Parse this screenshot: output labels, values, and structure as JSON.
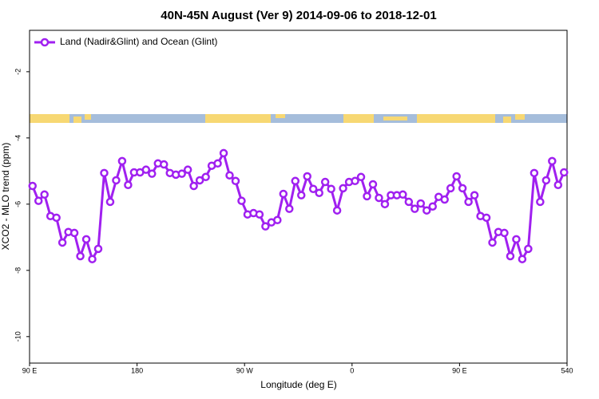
{
  "chart_data": {
    "type": "line",
    "title": "40N-45N August (Ver 9)   2014-09-06 to 2018-12-01",
    "x_label": "Longitude (deg E)",
    "y_label": "XCO2 - MLO trend (ppm)",
    "legend": "top-left",
    "x": [
      92.5,
      97.5,
      102.5,
      107.5,
      112.5,
      117.5,
      122.5,
      127.5,
      132.5,
      137.5,
      142.5,
      147.5,
      152.5,
      157.5,
      162.5,
      167.5,
      172.5,
      177.5,
      182.5,
      187.5,
      192.5,
      197.5,
      202.5,
      207.5,
      212.5,
      217.5,
      222.5,
      227.5,
      232.5,
      237.5,
      242.5,
      247.5,
      252.5,
      257.5,
      262.5,
      267.5,
      272.5,
      277.5,
      282.5,
      287.5,
      292.5,
      297.5,
      302.5,
      307.5,
      312.5,
      317.5,
      322.5,
      327.5,
      332.5,
      337.5,
      342.5,
      347.5,
      352.5,
      357.5,
      362.5,
      367.5,
      372.5,
      377.5,
      382.5,
      387.5,
      392.5,
      397.5,
      402.5,
      407.5,
      412.5,
      417.5,
      422.5,
      427.5,
      432.5,
      437.5,
      442.5,
      447.5,
      452.5,
      457.5,
      462.5,
      467.5,
      472.5,
      477.5,
      482.5,
      487.5,
      492.5,
      497.5,
      502.5,
      507.5,
      512.5,
      517.5,
      522.5,
      527.5,
      532.5,
      537.5
    ],
    "series": [
      {
        "name": "Land (Nadir&Glint) and Ocean (Glint)",
        "color": "#a020f0",
        "values": [
          -5.45,
          -5.9,
          -5.71,
          -6.36,
          -6.41,
          -7.16,
          -6.84,
          -6.87,
          -7.57,
          -7.06,
          -7.66,
          -7.35,
          -5.06,
          -5.93,
          -5.28,
          -4.7,
          -5.42,
          -5.04,
          -5.04,
          -4.96,
          -5.08,
          -4.77,
          -4.8,
          -5.06,
          -5.11,
          -5.08,
          -4.96,
          -5.45,
          -5.28,
          -5.18,
          -4.84,
          -4.77,
          -4.46,
          -5.13,
          -5.3,
          -5.9,
          -6.31,
          -6.27,
          -6.31,
          -6.67,
          -6.55,
          -6.48,
          -5.69,
          -6.14,
          -5.3,
          -5.73,
          -5.16,
          -5.54,
          -5.66,
          -5.33,
          -5.54,
          -6.19,
          -5.52,
          -5.33,
          -5.3,
          -5.18,
          -5.76,
          -5.4,
          -5.81,
          -6.0,
          -5.73,
          -5.73,
          -5.71,
          -5.93,
          -6.14,
          -5.98,
          -6.19,
          -6.07,
          -5.78,
          -5.86,
          -5.52,
          -5.16,
          -5.52,
          -5.93,
          -5.73,
          -6.36,
          -6.41,
          -7.16,
          -6.84,
          -6.87,
          -7.57,
          -7.06,
          -7.66,
          -7.35,
          -5.06,
          -5.93,
          -5.28,
          -4.7,
          -5.42,
          -5.04
        ]
      }
    ],
    "xlim": [
      90,
      540
    ],
    "xticks": [
      {
        "value": 90,
        "label": "90 E"
      },
      180,
      {
        "value": 270,
        "label": "90 W"
      },
      {
        "value": 360,
        "label": "0"
      },
      {
        "value": 450,
        "label": "90 E"
      },
      540
    ],
    "ylim": [
      -10.8,
      -0.75
    ],
    "yticks": [
      -10,
      -8,
      -6,
      -4,
      -2
    ]
  }
}
